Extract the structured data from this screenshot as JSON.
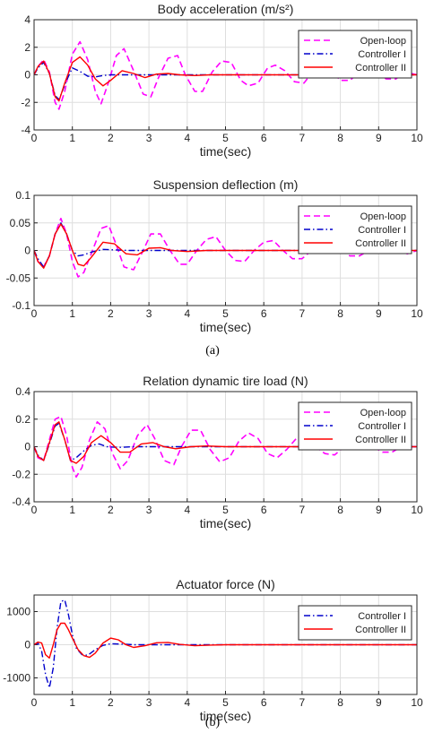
{
  "captions": {
    "a": "(a)",
    "b": "(b)"
  },
  "colors": {
    "open_loop": "#ff00ff",
    "controller_1": "#0000cc",
    "controller_2": "#ff0000",
    "axis": "#262626",
    "grid": "#dedede"
  },
  "chart_data": [
    {
      "type": "line",
      "title": "Body acceleration (m/s²)",
      "xlabel": "time(sec)",
      "ylabel": "",
      "xlim": [
        0,
        10
      ],
      "ylim": [
        -4,
        4
      ],
      "x_ticks": [
        "0",
        "1",
        "2",
        "3",
        "4",
        "5",
        "6",
        "7",
        "8",
        "9",
        "10"
      ],
      "y_ticks": [
        "-4",
        "-2",
        "0",
        "2",
        "4"
      ],
      "grid": true,
      "legend_position": "top-right",
      "series": [
        {
          "name": "Open-loop",
          "style": "dashed",
          "color": "#ff00ff",
          "x": [
            0,
            0.1,
            0.25,
            0.4,
            0.55,
            0.65,
            0.8,
            1.0,
            1.2,
            1.4,
            1.6,
            1.75,
            1.95,
            2.15,
            2.35,
            2.6,
            2.85,
            3.05,
            3.25,
            3.5,
            3.75,
            3.95,
            4.2,
            4.4,
            4.65,
            4.9,
            5.15,
            5.4,
            5.6,
            5.85,
            6.1,
            6.3,
            6.55,
            6.8,
            7.05,
            7.3,
            7.55,
            7.8,
            8.0,
            8.25,
            8.5,
            8.75,
            9.0,
            9.2,
            9.45,
            9.7,
            10.0
          ],
          "y": [
            0,
            0.6,
            1.1,
            0.2,
            -2.0,
            -2.5,
            -1.2,
            1.5,
            2.4,
            1.1,
            -1.2,
            -2.1,
            -0.5,
            1.4,
            1.9,
            0.3,
            -1.4,
            -1.6,
            -0.2,
            1.2,
            1.4,
            0,
            -1.2,
            -1.2,
            0.2,
            1.0,
            0.9,
            -0.4,
            -0.8,
            -0.6,
            0.5,
            0.7,
            0.3,
            -0.5,
            -0.6,
            0.3,
            0.5,
            0.2,
            -0.4,
            -0.4,
            0.2,
            0.4,
            0,
            -0.3,
            -0.3,
            0.2,
            0
          ]
        },
        {
          "name": "Controller I",
          "style": "dash-dot",
          "color": "#0000cc",
          "x": [
            0,
            0.1,
            0.25,
            0.4,
            0.55,
            0.65,
            0.85,
            1.0,
            1.2,
            1.4,
            1.6,
            1.8,
            2.0,
            2.5,
            3.0,
            4.0,
            5.0,
            10.0
          ],
          "y": [
            0,
            0.5,
            0.9,
            0.1,
            -1.5,
            -1.8,
            -0.4,
            0.5,
            0.25,
            -0.1,
            -0.15,
            -0.05,
            0,
            0,
            0,
            0,
            0,
            0
          ]
        },
        {
          "name": "Controller II",
          "style": "solid",
          "color": "#ff0000",
          "x": [
            0,
            0.1,
            0.25,
            0.4,
            0.55,
            0.65,
            0.8,
            1.0,
            1.2,
            1.4,
            1.6,
            1.8,
            2.0,
            2.3,
            2.6,
            2.9,
            3.2,
            3.5,
            3.8,
            4.2,
            4.6,
            5.0,
            6.0,
            7.0,
            10.0
          ],
          "y": [
            0,
            0.6,
            1.0,
            0.1,
            -1.6,
            -1.9,
            -0.6,
            0.9,
            1.3,
            0.7,
            -0.3,
            -0.8,
            -0.4,
            0.3,
            0.1,
            -0.2,
            0.05,
            0.1,
            0,
            -0.05,
            0,
            0,
            0,
            0,
            0
          ]
        }
      ]
    },
    {
      "type": "line",
      "title": "Suspension deflection (m)",
      "xlabel": "time(sec)",
      "ylabel": "",
      "xlim": [
        0,
        10
      ],
      "ylim": [
        -0.1,
        0.1
      ],
      "x_ticks": [
        "0",
        "1",
        "2",
        "3",
        "4",
        "5",
        "6",
        "7",
        "8",
        "9",
        "10"
      ],
      "y_ticks": [
        "-0.1",
        "-0.05",
        "0",
        "0.05",
        "0.1"
      ],
      "grid": true,
      "legend_position": "top-right",
      "series": [
        {
          "name": "Open-loop",
          "style": "dashed",
          "color": "#ff00ff",
          "x": [
            0,
            0.1,
            0.25,
            0.4,
            0.55,
            0.7,
            0.85,
            1.0,
            1.15,
            1.3,
            1.5,
            1.75,
            1.95,
            2.15,
            2.35,
            2.6,
            2.85,
            3.05,
            3.3,
            3.55,
            3.8,
            4.0,
            4.25,
            4.5,
            4.75,
            5.0,
            5.25,
            5.5,
            5.75,
            6.0,
            6.25,
            6.5,
            6.75,
            7.0,
            7.25,
            7.5,
            7.75,
            8.0,
            8.25,
            8.5,
            8.75,
            9.0,
            9.25,
            9.5,
            9.75,
            10.0
          ],
          "y": [
            0,
            -0.02,
            -0.03,
            -0.01,
            0.03,
            0.058,
            0.03,
            -0.02,
            -0.048,
            -0.04,
            -0.005,
            0.04,
            0.045,
            0.01,
            -0.03,
            -0.035,
            0,
            0.03,
            0.03,
            0,
            -0.025,
            -0.025,
            0,
            0.02,
            0.025,
            0,
            -0.018,
            -0.02,
            0,
            0.015,
            0.018,
            0,
            -0.015,
            -0.015,
            0,
            0.012,
            0.013,
            0,
            -0.01,
            -0.01,
            0,
            0.008,
            0.008,
            0,
            -0.006,
            0
          ]
        },
        {
          "name": "Controller I",
          "style": "dash-dot",
          "color": "#0000cc",
          "x": [
            0,
            0.1,
            0.25,
            0.4,
            0.55,
            0.7,
            0.85,
            1.0,
            1.15,
            1.3,
            1.5,
            1.8,
            2.1,
            2.5,
            3.0,
            4.0,
            10.0
          ],
          "y": [
            0,
            -0.015,
            -0.03,
            -0.01,
            0.03,
            0.05,
            0.03,
            0,
            -0.01,
            -0.008,
            -0.003,
            0.002,
            0.001,
            0,
            0,
            0,
            0
          ]
        },
        {
          "name": "Controller II",
          "style": "solid",
          "color": "#ff0000",
          "x": [
            0,
            0.1,
            0.25,
            0.4,
            0.55,
            0.7,
            0.85,
            1.0,
            1.15,
            1.3,
            1.5,
            1.8,
            2.1,
            2.4,
            2.7,
            3.0,
            3.3,
            3.6,
            4.0,
            4.5,
            5.0,
            10.0
          ],
          "y": [
            0,
            -0.02,
            -0.032,
            -0.01,
            0.03,
            0.048,
            0.03,
            0,
            -0.025,
            -0.028,
            -0.012,
            0.015,
            0.012,
            -0.006,
            -0.008,
            0.004,
            0.005,
            0,
            -0.002,
            0,
            0,
            0
          ]
        }
      ]
    },
    {
      "type": "line",
      "title": "Relation dynamic tire load (N)",
      "xlabel": "time(sec)",
      "ylabel": "",
      "xlim": [
        0,
        10
      ],
      "ylim": [
        -0.4,
        0.4
      ],
      "x_ticks": [
        "0",
        "1",
        "2",
        "3",
        "4",
        "5",
        "6",
        "7",
        "8",
        "9",
        "10"
      ],
      "y_ticks": [
        "-0.4",
        "-0.2",
        "0",
        "0.2",
        "0.4"
      ],
      "grid": true,
      "legend_position": "top-right",
      "series": [
        {
          "name": "Open-loop",
          "style": "dashed",
          "color": "#ff00ff",
          "x": [
            0,
            0.1,
            0.25,
            0.4,
            0.55,
            0.7,
            0.85,
            1.0,
            1.1,
            1.25,
            1.45,
            1.65,
            1.85,
            2.05,
            2.25,
            2.45,
            2.7,
            2.95,
            3.15,
            3.4,
            3.65,
            3.85,
            4.1,
            4.35,
            4.6,
            4.85,
            5.1,
            5.35,
            5.6,
            5.85,
            6.1,
            6.35,
            6.6,
            6.85,
            7.1,
            7.35,
            7.6,
            7.85,
            8.1,
            8.35,
            8.6,
            8.85,
            9.1,
            9.35,
            9.6,
            10.0
          ],
          "y": [
            0,
            -0.08,
            -0.1,
            0.05,
            0.2,
            0.22,
            0.08,
            -0.15,
            -0.22,
            -0.15,
            0.05,
            0.18,
            0.13,
            -0.05,
            -0.16,
            -0.1,
            0.08,
            0.16,
            0.06,
            -0.1,
            -0.13,
            0,
            0.12,
            0.12,
            -0.02,
            -0.11,
            -0.08,
            0.04,
            0.1,
            0.06,
            -0.05,
            -0.08,
            -0.02,
            0.06,
            0.07,
            0,
            -0.05,
            -0.06,
            0,
            0.05,
            0.05,
            0,
            -0.04,
            -0.04,
            0,
            0
          ]
        },
        {
          "name": "Controller I",
          "style": "dash-dot",
          "color": "#0000cc",
          "x": [
            0,
            0.1,
            0.25,
            0.4,
            0.55,
            0.65,
            0.8,
            0.95,
            1.1,
            1.3,
            1.5,
            1.7,
            1.9,
            2.2,
            2.6,
            3.0,
            4.0,
            10.0
          ],
          "y": [
            0,
            -0.06,
            -0.1,
            0.02,
            0.15,
            0.17,
            0.05,
            -0.1,
            -0.08,
            -0.03,
            0.01,
            0.02,
            0,
            -0.005,
            0,
            0,
            0,
            0
          ]
        },
        {
          "name": "Controller II",
          "style": "solid",
          "color": "#ff0000",
          "x": [
            0,
            0.1,
            0.25,
            0.4,
            0.55,
            0.65,
            0.8,
            0.95,
            1.1,
            1.3,
            1.5,
            1.75,
            2.0,
            2.25,
            2.5,
            2.8,
            3.1,
            3.4,
            3.7,
            4.1,
            4.5,
            5.0,
            6.0,
            10.0
          ],
          "y": [
            0,
            -0.07,
            -0.1,
            0.03,
            0.16,
            0.18,
            0.05,
            -0.1,
            -0.12,
            -0.07,
            0.03,
            0.08,
            0.03,
            -0.04,
            -0.04,
            0.02,
            0.03,
            0,
            -0.015,
            0,
            0.005,
            0,
            0,
            0
          ]
        }
      ]
    },
    {
      "type": "line",
      "title": "Actuator force (N)",
      "xlabel": "time(sec)",
      "ylabel": "",
      "xlim": [
        0,
        10
      ],
      "ylim": [
        -1500,
        1500
      ],
      "x_ticks": [
        "0",
        "1",
        "2",
        "3",
        "4",
        "5",
        "6",
        "7",
        "8",
        "9",
        "10"
      ],
      "y_ticks": [
        "-1000",
        "0",
        "1000"
      ],
      "grid": true,
      "legend_position": "top-right",
      "series": [
        {
          "name": "Controller I",
          "style": "dash-dot",
          "color": "#0000cc",
          "x": [
            0,
            0.1,
            0.2,
            0.3,
            0.4,
            0.5,
            0.6,
            0.7,
            0.8,
            0.9,
            1.0,
            1.1,
            1.25,
            1.4,
            1.6,
            1.8,
            2.0,
            2.3,
            2.6,
            3.0,
            3.5,
            4.0,
            5.0,
            10.0
          ],
          "y": [
            0,
            50,
            -200,
            -900,
            -1300,
            -700,
            500,
            1300,
            1350,
            900,
            300,
            -100,
            -300,
            -320,
            -150,
            -20,
            30,
            20,
            0,
            0,
            0,
            0,
            0,
            0
          ]
        },
        {
          "name": "Controller II",
          "style": "solid",
          "color": "#ff0000",
          "x": [
            0,
            0.1,
            0.2,
            0.3,
            0.4,
            0.5,
            0.6,
            0.7,
            0.8,
            0.9,
            1.0,
            1.15,
            1.3,
            1.45,
            1.6,
            1.8,
            2.0,
            2.2,
            2.4,
            2.6,
            2.9,
            3.2,
            3.5,
            3.8,
            4.2,
            4.6,
            5.0,
            6.0,
            10.0
          ],
          "y": [
            0,
            80,
            50,
            -300,
            -400,
            0,
            450,
            650,
            650,
            450,
            200,
            -150,
            -330,
            -380,
            -250,
            50,
            200,
            150,
            0,
            -80,
            -30,
            60,
            70,
            10,
            -30,
            -10,
            0,
            0,
            0
          ]
        }
      ]
    }
  ]
}
